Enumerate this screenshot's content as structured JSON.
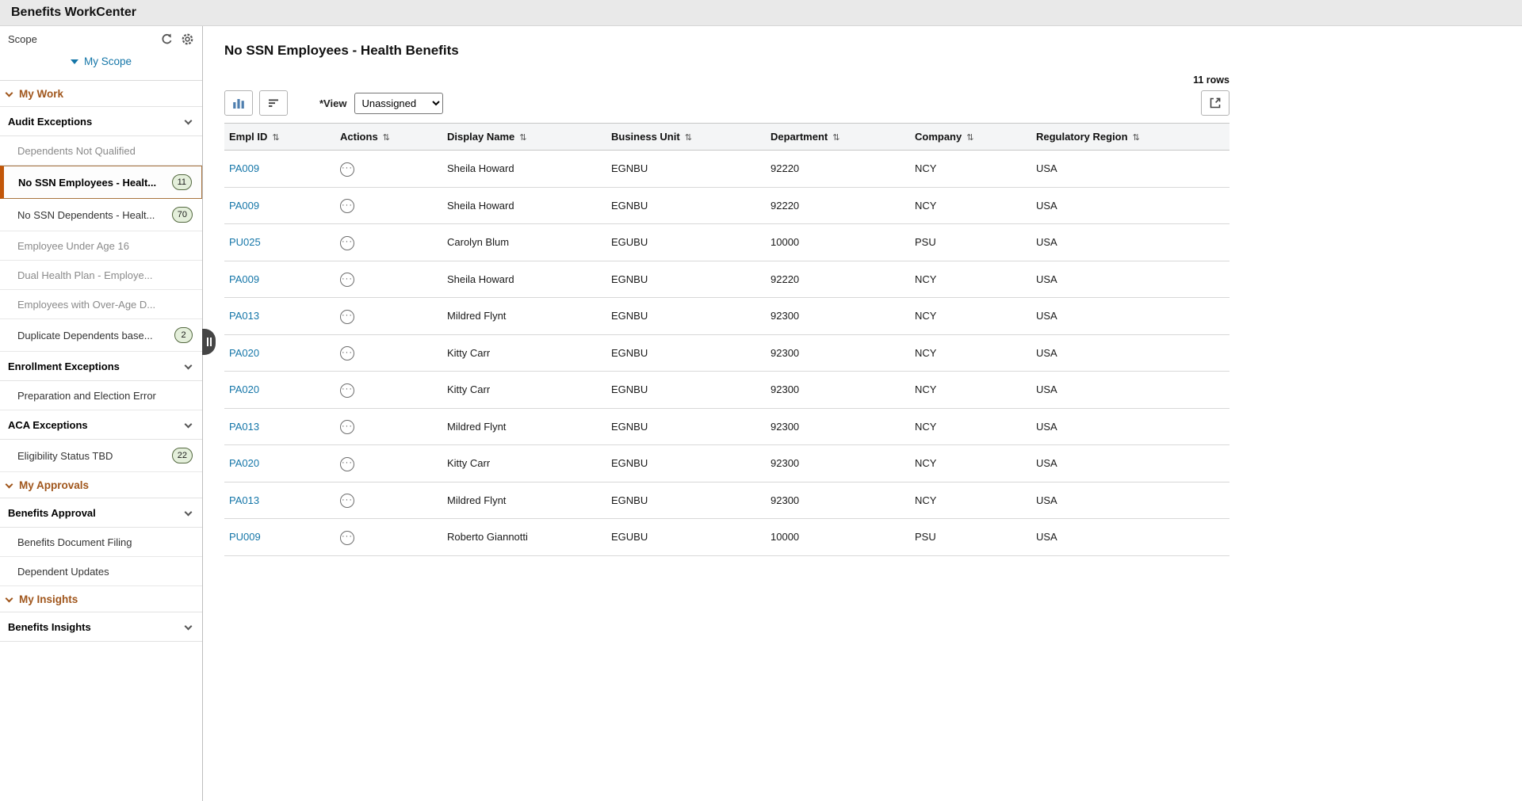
{
  "header": {
    "title": "Benefits WorkCenter"
  },
  "colors": {
    "accent_orange": "#a0561c",
    "selected_orange": "#c25608",
    "link_blue": "#1576a8",
    "badge_green_bg": "#e4efdb",
    "badge_green_border": "#53683f"
  },
  "icons": {
    "sort": "⇅",
    "related_actions": "···"
  },
  "sidebar": {
    "scope": {
      "label": "Scope",
      "selector": "My Scope"
    },
    "nav": [
      {
        "type": "root",
        "label": "My Work"
      },
      {
        "type": "section",
        "label": "Audit Exceptions"
      },
      {
        "type": "item",
        "label": "Dependents Not Qualified",
        "muted": true
      },
      {
        "type": "item",
        "label": "No SSN Employees - Healt...",
        "badge": "11",
        "selected": true
      },
      {
        "type": "item",
        "label": "No SSN Dependents - Healt...",
        "badge": "70"
      },
      {
        "type": "item",
        "label": "Employee Under Age 16",
        "muted": true
      },
      {
        "type": "item",
        "label": "Dual Health Plan - Employe...",
        "muted": true
      },
      {
        "type": "item",
        "label": "Employees with Over-Age D...",
        "muted": true
      },
      {
        "type": "item",
        "label": "Duplicate Dependents base...",
        "badge": "2"
      },
      {
        "type": "section",
        "label": "Enrollment Exceptions"
      },
      {
        "type": "item",
        "label": "Preparation and Election Error"
      },
      {
        "type": "section",
        "label": "ACA Exceptions"
      },
      {
        "type": "item",
        "label": "Eligibility Status TBD",
        "badge": "22"
      },
      {
        "type": "root",
        "label": "My Approvals"
      },
      {
        "type": "section",
        "label": "Benefits Approval"
      },
      {
        "type": "item",
        "label": "Benefits Document Filing"
      },
      {
        "type": "item",
        "label": "Dependent Updates"
      },
      {
        "type": "root",
        "label": "My Insights"
      },
      {
        "type": "section",
        "label": "Benefits Insights"
      }
    ]
  },
  "main": {
    "title": "No SSN Employees - Health Benefits",
    "rows_count": "11 rows",
    "toolbar": {
      "view_label": "*View",
      "view_value": "Unassigned"
    },
    "table": {
      "columns": [
        {
          "label": "Empl ID"
        },
        {
          "label": "Actions"
        },
        {
          "label": "Display Name"
        },
        {
          "label": "Business Unit"
        },
        {
          "label": "Department"
        },
        {
          "label": "Company"
        },
        {
          "label": "Regulatory Region"
        }
      ],
      "rows": [
        {
          "empl_id": "PA009",
          "display_name": "Sheila Howard",
          "business_unit": "EGNBU",
          "department": "92220",
          "company": "NCY",
          "region": "USA"
        },
        {
          "empl_id": "PA009",
          "display_name": "Sheila Howard",
          "business_unit": "EGNBU",
          "department": "92220",
          "company": "NCY",
          "region": "USA"
        },
        {
          "empl_id": "PU025",
          "display_name": "Carolyn Blum",
          "business_unit": "EGUBU",
          "department": "10000",
          "company": "PSU",
          "region": "USA"
        },
        {
          "empl_id": "PA009",
          "display_name": "Sheila Howard",
          "business_unit": "EGNBU",
          "department": "92220",
          "company": "NCY",
          "region": "USA"
        },
        {
          "empl_id": "PA013",
          "display_name": "Mildred Flynt",
          "business_unit": "EGNBU",
          "department": "92300",
          "company": "NCY",
          "region": "USA"
        },
        {
          "empl_id": "PA020",
          "display_name": "Kitty Carr",
          "business_unit": "EGNBU",
          "department": "92300",
          "company": "NCY",
          "region": "USA"
        },
        {
          "empl_id": "PA020",
          "display_name": "Kitty Carr",
          "business_unit": "EGNBU",
          "department": "92300",
          "company": "NCY",
          "region": "USA"
        },
        {
          "empl_id": "PA013",
          "display_name": "Mildred Flynt",
          "business_unit": "EGNBU",
          "department": "92300",
          "company": "NCY",
          "region": "USA"
        },
        {
          "empl_id": "PA020",
          "display_name": "Kitty Carr",
          "business_unit": "EGNBU",
          "department": "92300",
          "company": "NCY",
          "region": "USA"
        },
        {
          "empl_id": "PA013",
          "display_name": "Mildred Flynt",
          "business_unit": "EGNBU",
          "department": "92300",
          "company": "NCY",
          "region": "USA"
        },
        {
          "empl_id": "PU009",
          "display_name": "Roberto Giannotti",
          "business_unit": "EGUBU",
          "department": "10000",
          "company": "PSU",
          "region": "USA"
        }
      ]
    }
  }
}
